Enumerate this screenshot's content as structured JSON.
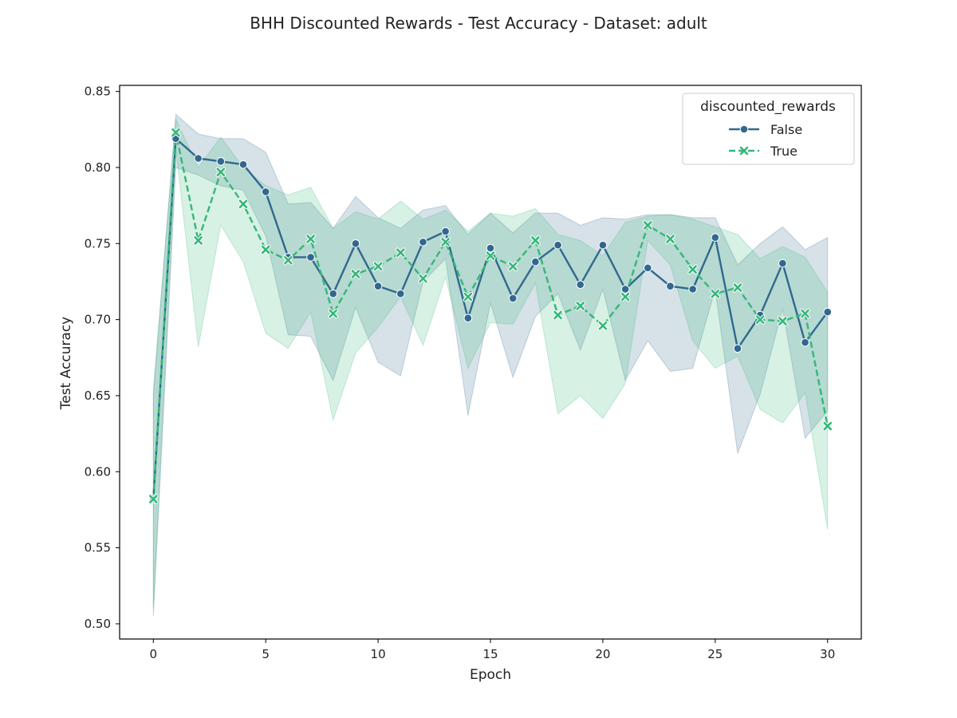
{
  "chart_data": {
    "type": "line",
    "title": "BHH Discounted Rewards - Test Accuracy - Dataset: adult",
    "xlabel": "Epoch",
    "ylabel": "Test Accuracy",
    "xlim": [
      -1.5,
      31.5
    ],
    "ylim": [
      0.49,
      0.854
    ],
    "xticks": [
      0,
      5,
      10,
      15,
      20,
      25,
      30
    ],
    "xtick_labels": [
      "0",
      "5",
      "10",
      "15",
      "20",
      "25",
      "30"
    ],
    "yticks": [
      0.5,
      0.55,
      0.6,
      0.65,
      0.7,
      0.75,
      0.8,
      0.85
    ],
    "ytick_labels": [
      "0.50",
      "0.55",
      "0.60",
      "0.65",
      "0.70",
      "0.75",
      "0.80",
      "0.85"
    ],
    "grid": false,
    "legend": {
      "title": "discounted_rewards",
      "placement": "top-right"
    },
    "x": [
      0,
      1,
      2,
      3,
      4,
      5,
      6,
      7,
      8,
      9,
      10,
      11,
      12,
      13,
      14,
      15,
      16,
      17,
      18,
      19,
      20,
      21,
      22,
      23,
      24,
      25,
      26,
      27,
      28,
      29,
      30
    ],
    "series": [
      {
        "name": "False",
        "color": "#31688e",
        "marker": "circle",
        "linestyle": "solid",
        "values": [
          0.582,
          0.819,
          0.806,
          0.804,
          0.802,
          0.784,
          0.741,
          0.741,
          0.717,
          0.75,
          0.722,
          0.717,
          0.751,
          0.758,
          0.701,
          0.747,
          0.714,
          0.738,
          0.749,
          0.723,
          0.749,
          0.72,
          0.734,
          0.722,
          0.72,
          0.754,
          0.681,
          0.703,
          0.737,
          0.685,
          0.705
        ],
        "ci_upper": [
          0.65,
          0.835,
          0.822,
          0.819,
          0.819,
          0.81,
          0.776,
          0.777,
          0.76,
          0.781,
          0.767,
          0.76,
          0.772,
          0.775,
          0.756,
          0.77,
          0.757,
          0.77,
          0.77,
          0.762,
          0.767,
          0.766,
          0.769,
          0.769,
          0.767,
          0.767,
          0.736,
          0.75,
          0.761,
          0.746,
          0.754
        ],
        "ci_lower": [
          0.505,
          0.8,
          0.795,
          0.788,
          0.785,
          0.755,
          0.69,
          0.689,
          0.66,
          0.708,
          0.672,
          0.663,
          0.725,
          0.74,
          0.637,
          0.711,
          0.662,
          0.702,
          0.717,
          0.68,
          0.72,
          0.66,
          0.686,
          0.666,
          0.668,
          0.72,
          0.612,
          0.651,
          0.707,
          0.622,
          0.64
        ]
      },
      {
        "name": "True",
        "color": "#35b779",
        "marker": "x",
        "linestyle": "dashed",
        "values": [
          0.582,
          0.823,
          0.752,
          0.797,
          0.776,
          0.746,
          0.739,
          0.753,
          0.704,
          0.73,
          0.735,
          0.744,
          0.727,
          0.751,
          0.715,
          0.742,
          0.735,
          0.752,
          0.703,
          0.709,
          0.696,
          0.715,
          0.762,
          0.753,
          0.733,
          0.717,
          0.721,
          0.7,
          0.699,
          0.704,
          0.63
        ],
        "ci_upper": [
          0.655,
          0.832,
          0.8,
          0.82,
          0.8,
          0.788,
          0.782,
          0.787,
          0.76,
          0.771,
          0.766,
          0.778,
          0.766,
          0.772,
          0.758,
          0.77,
          0.768,
          0.773,
          0.756,
          0.752,
          0.742,
          0.764,
          0.768,
          0.769,
          0.766,
          0.761,
          0.756,
          0.74,
          0.748,
          0.741,
          0.718
        ],
        "ci_lower": [
          0.51,
          0.812,
          0.682,
          0.762,
          0.738,
          0.691,
          0.681,
          0.705,
          0.634,
          0.678,
          0.695,
          0.715,
          0.683,
          0.728,
          0.668,
          0.698,
          0.697,
          0.724,
          0.638,
          0.65,
          0.635,
          0.658,
          0.752,
          0.736,
          0.686,
          0.668,
          0.676,
          0.641,
          0.632,
          0.652,
          0.562
        ]
      }
    ]
  }
}
